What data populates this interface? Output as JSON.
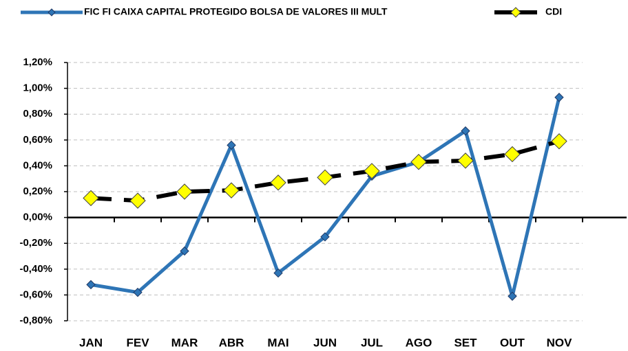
{
  "chart_data": {
    "type": "line",
    "categories": [
      "JAN",
      "FEV",
      "MAR",
      "ABR",
      "MAI",
      "JUN",
      "JUL",
      "AGO",
      "SET",
      "OUT",
      "NOV"
    ],
    "series": [
      {
        "name": "FIC FI CAIXA CAPITAL PROTEGIDO BOLSA DE VALORES III MULT",
        "color": "#2e75b6",
        "marker_color": "#2e75b6",
        "dashed": false,
        "values": [
          -0.52,
          -0.58,
          -0.26,
          0.56,
          -0.43,
          -0.15,
          0.32,
          0.43,
          0.67,
          -0.61,
          0.93
        ]
      },
      {
        "name": "CDI",
        "color": "#000000",
        "marker_color": "#ffff00",
        "dashed": true,
        "values": [
          0.15,
          0.13,
          0.2,
          0.21,
          0.27,
          0.31,
          0.36,
          0.43,
          0.44,
          0.49,
          0.59
        ]
      }
    ],
    "ylim": [
      -0.8,
      1.2
    ],
    "yticks": [
      {
        "value": -0.8,
        "label": "-0,80%"
      },
      {
        "value": -0.6,
        "label": "-0,60%"
      },
      {
        "value": -0.4,
        "label": "-0,40%"
      },
      {
        "value": -0.2,
        "label": "-0,20%"
      },
      {
        "value": 0,
        "label": "0,00%"
      },
      {
        "value": 0.2,
        "label": "0,20%"
      },
      {
        "value": 0.4,
        "label": "0,40%"
      },
      {
        "value": 0.6,
        "label": "0,60%"
      },
      {
        "value": 0.8,
        "label": "0,80%"
      },
      {
        "value": 1.0,
        "label": "1,00%"
      },
      {
        "value": 1.2,
        "label": "1,20%"
      }
    ],
    "grid": true,
    "legend": "top"
  }
}
